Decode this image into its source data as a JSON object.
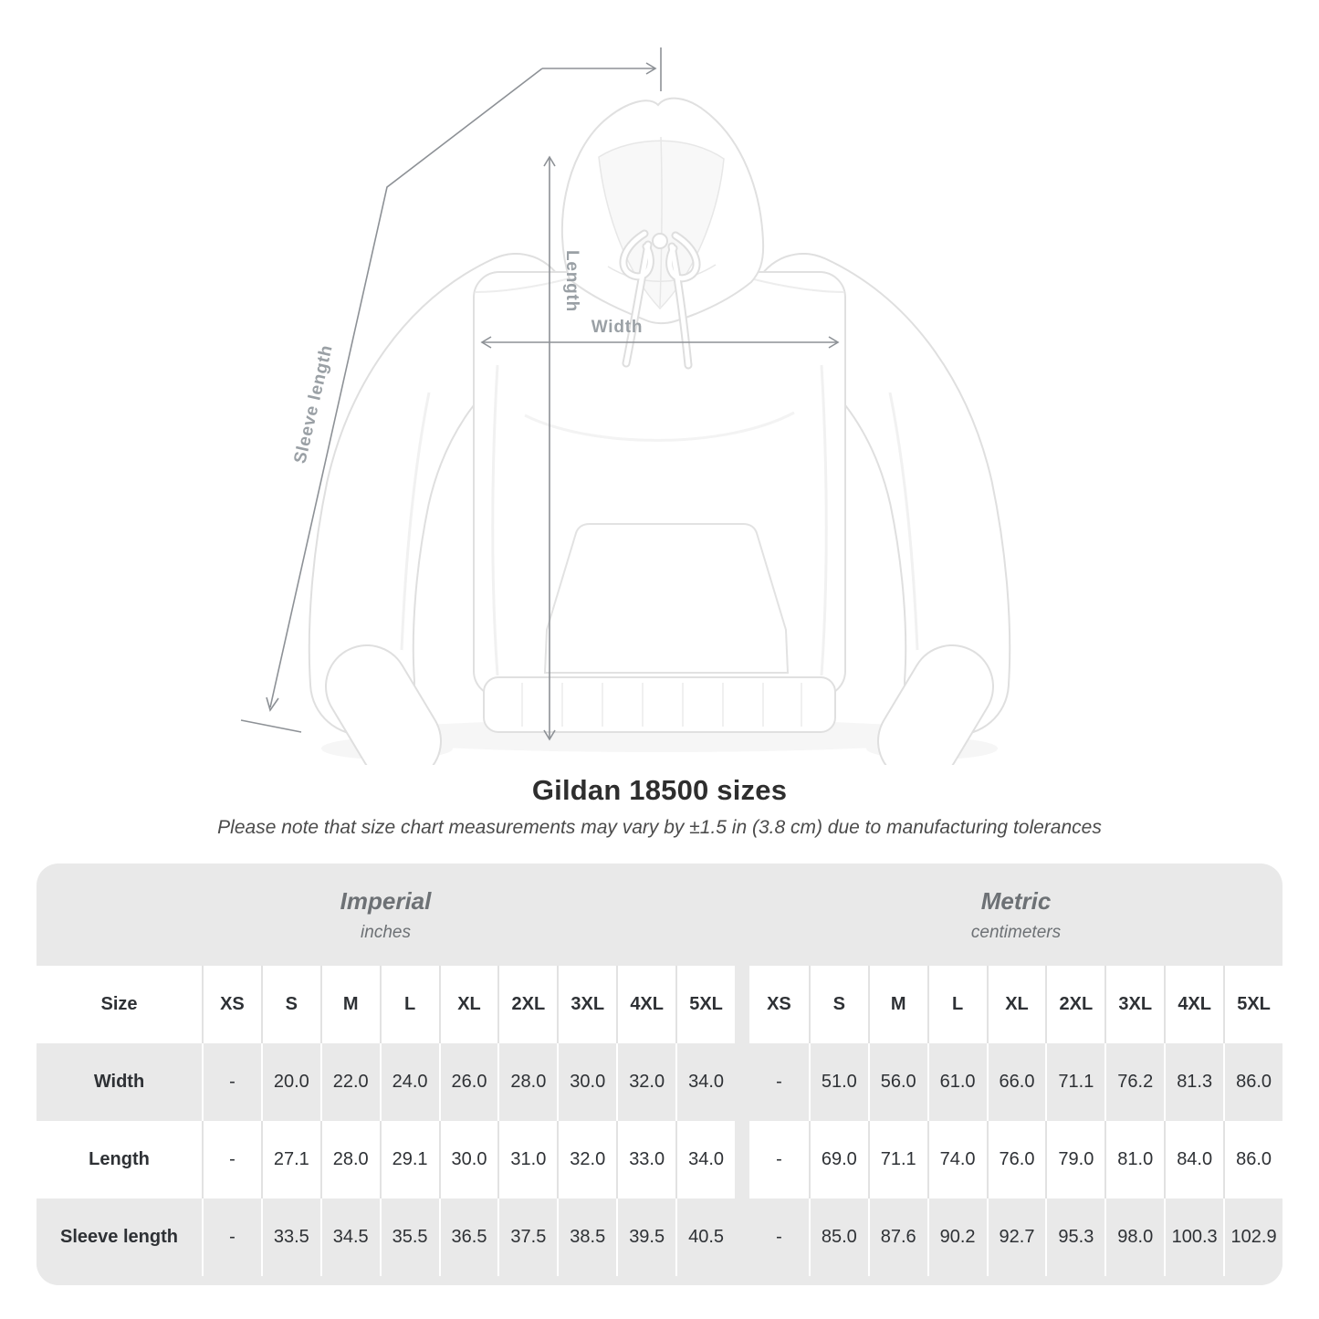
{
  "diagram": {
    "labels": {
      "sleeve_length": "Sleeve length",
      "length": "Length",
      "width": "Width"
    }
  },
  "title": "Gildan 18500 sizes",
  "subtitle": "Please note that size chart measurements may vary by ±1.5 in (3.8 cm) due to manufacturing tolerances",
  "table": {
    "systems": [
      {
        "name": "Imperial",
        "unit": "inches"
      },
      {
        "name": "Metric",
        "unit": "centimeters"
      }
    ],
    "size_label": "Size",
    "sizes": [
      "XS",
      "S",
      "M",
      "L",
      "XL",
      "2XL",
      "3XL",
      "4XL",
      "5XL"
    ],
    "rows": [
      {
        "label": "Width",
        "imperial": [
          "-",
          "20.0",
          "22.0",
          "24.0",
          "26.0",
          "28.0",
          "30.0",
          "32.0",
          "34.0"
        ],
        "metric": [
          "-",
          "51.0",
          "56.0",
          "61.0",
          "66.0",
          "71.1",
          "76.2",
          "81.3",
          "86.0"
        ]
      },
      {
        "label": "Length",
        "imperial": [
          "-",
          "27.1",
          "28.0",
          "29.1",
          "30.0",
          "31.0",
          "32.0",
          "33.0",
          "34.0"
        ],
        "metric": [
          "-",
          "69.0",
          "71.1",
          "74.0",
          "76.0",
          "79.0",
          "81.0",
          "84.0",
          "86.0"
        ]
      },
      {
        "label": "Sleeve length",
        "imperial": [
          "-",
          "33.5",
          "34.5",
          "35.5",
          "36.5",
          "37.5",
          "38.5",
          "39.5",
          "40.5"
        ],
        "metric": [
          "-",
          "85.0",
          "87.6",
          "90.2",
          "92.7",
          "95.3",
          "98.0",
          "100.3",
          "102.9"
        ]
      }
    ]
  },
  "chart_data": {
    "type": "table",
    "title": "Gildan 18500 sizes",
    "subtitle": "Please note that size chart measurements may vary by ±1.5 in (3.8 cm) due to manufacturing tolerances",
    "column_groups": [
      "Imperial (inches)",
      "Metric (centimeters)"
    ],
    "columns": [
      "Size",
      "XS",
      "S",
      "M",
      "L",
      "XL",
      "2XL",
      "3XL",
      "4XL",
      "5XL",
      "XS",
      "S",
      "M",
      "L",
      "XL",
      "2XL",
      "3XL",
      "4XL",
      "5XL"
    ],
    "rows": [
      [
        "Width",
        "-",
        "20.0",
        "22.0",
        "24.0",
        "26.0",
        "28.0",
        "30.0",
        "32.0",
        "34.0",
        "-",
        "51.0",
        "56.0",
        "61.0",
        "66.0",
        "71.1",
        "76.2",
        "81.3",
        "86.0"
      ],
      [
        "Length",
        "-",
        "27.1",
        "28.0",
        "29.1",
        "30.0",
        "31.0",
        "32.0",
        "33.0",
        "34.0",
        "-",
        "69.0",
        "71.1",
        "74.0",
        "76.0",
        "79.0",
        "81.0",
        "84.0",
        "86.0"
      ],
      [
        "Sleeve length",
        "-",
        "33.5",
        "34.5",
        "35.5",
        "36.5",
        "37.5",
        "38.5",
        "39.5",
        "40.5",
        "-",
        "85.0",
        "87.6",
        "90.2",
        "92.7",
        "95.3",
        "98.0",
        "100.3",
        "102.9"
      ]
    ]
  },
  "colors": {
    "table_gray": "#e9e9e9",
    "separator_on_white": "#e2e2e2",
    "separator_on_gray": "#ffffff",
    "dimension_line": "#8d9196",
    "dimension_label": "#9aa0a5",
    "header_text": "#6d7175",
    "value_text": "#2e3135",
    "title_text": "#2e2e2e"
  }
}
